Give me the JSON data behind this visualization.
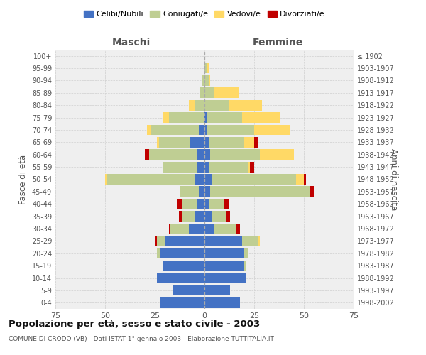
{
  "age_groups": [
    "0-4",
    "5-9",
    "10-14",
    "15-19",
    "20-24",
    "25-29",
    "30-34",
    "35-39",
    "40-44",
    "45-49",
    "50-54",
    "55-59",
    "60-64",
    "65-69",
    "70-74",
    "75-79",
    "80-84",
    "85-89",
    "90-94",
    "95-99",
    "100+"
  ],
  "birth_years": [
    "1998-2002",
    "1993-1997",
    "1988-1992",
    "1983-1987",
    "1978-1982",
    "1973-1977",
    "1968-1972",
    "1963-1967",
    "1958-1962",
    "1953-1957",
    "1948-1952",
    "1943-1947",
    "1938-1942",
    "1933-1937",
    "1928-1932",
    "1923-1927",
    "1918-1922",
    "1913-1917",
    "1908-1912",
    "1903-1907",
    "≤ 1902"
  ],
  "maschi": {
    "celibi": [
      22,
      16,
      24,
      21,
      22,
      20,
      8,
      5,
      4,
      3,
      5,
      4,
      4,
      7,
      3,
      0,
      0,
      0,
      0,
      0,
      0
    ],
    "coniugati": [
      0,
      0,
      0,
      0,
      2,
      4,
      9,
      6,
      7,
      9,
      44,
      17,
      24,
      16,
      24,
      18,
      5,
      2,
      1,
      0,
      0
    ],
    "vedovi": [
      0,
      0,
      0,
      0,
      0,
      0,
      0,
      0,
      0,
      0,
      1,
      0,
      0,
      1,
      2,
      3,
      3,
      0,
      0,
      0,
      0
    ],
    "divorziati": [
      0,
      0,
      0,
      0,
      0,
      1,
      1,
      2,
      3,
      0,
      0,
      0,
      2,
      0,
      0,
      0,
      0,
      0,
      0,
      0,
      0
    ]
  },
  "femmine": {
    "nubili": [
      18,
      13,
      21,
      20,
      20,
      19,
      5,
      4,
      2,
      3,
      4,
      2,
      3,
      2,
      1,
      1,
      0,
      0,
      0,
      0,
      0
    ],
    "coniugate": [
      0,
      0,
      0,
      1,
      2,
      8,
      11,
      7,
      8,
      50,
      42,
      20,
      25,
      18,
      24,
      18,
      12,
      5,
      2,
      1,
      0
    ],
    "vedove": [
      0,
      0,
      0,
      0,
      0,
      1,
      0,
      0,
      0,
      0,
      4,
      1,
      17,
      5,
      18,
      19,
      17,
      12,
      1,
      1,
      0
    ],
    "divorziate": [
      0,
      0,
      0,
      0,
      0,
      0,
      2,
      2,
      2,
      2,
      1,
      2,
      0,
      2,
      0,
      0,
      0,
      0,
      0,
      0,
      0
    ]
  },
  "colors": {
    "celibi_nubili": "#4472C4",
    "coniugati_e": "#BFCE93",
    "vedovi_e": "#FFD966",
    "divorziati_e": "#C00000"
  },
  "xlim": 75,
  "title": "Popolazione per età, sesso e stato civile - 2003",
  "subtitle": "COMUNE DI CRODO (VB) - Dati ISTAT 1° gennaio 2003 - Elaborazione TUTTITALIA.IT",
  "ylabel_left": "Fasce di età",
  "ylabel_right": "Anni di nascita",
  "xlabel_maschi": "Maschi",
  "xlabel_femmine": "Femmine",
  "bg_color": "#FFFFFF",
  "plot_bg": "#EFEFEF",
  "grid_color": "#CCCCCC"
}
